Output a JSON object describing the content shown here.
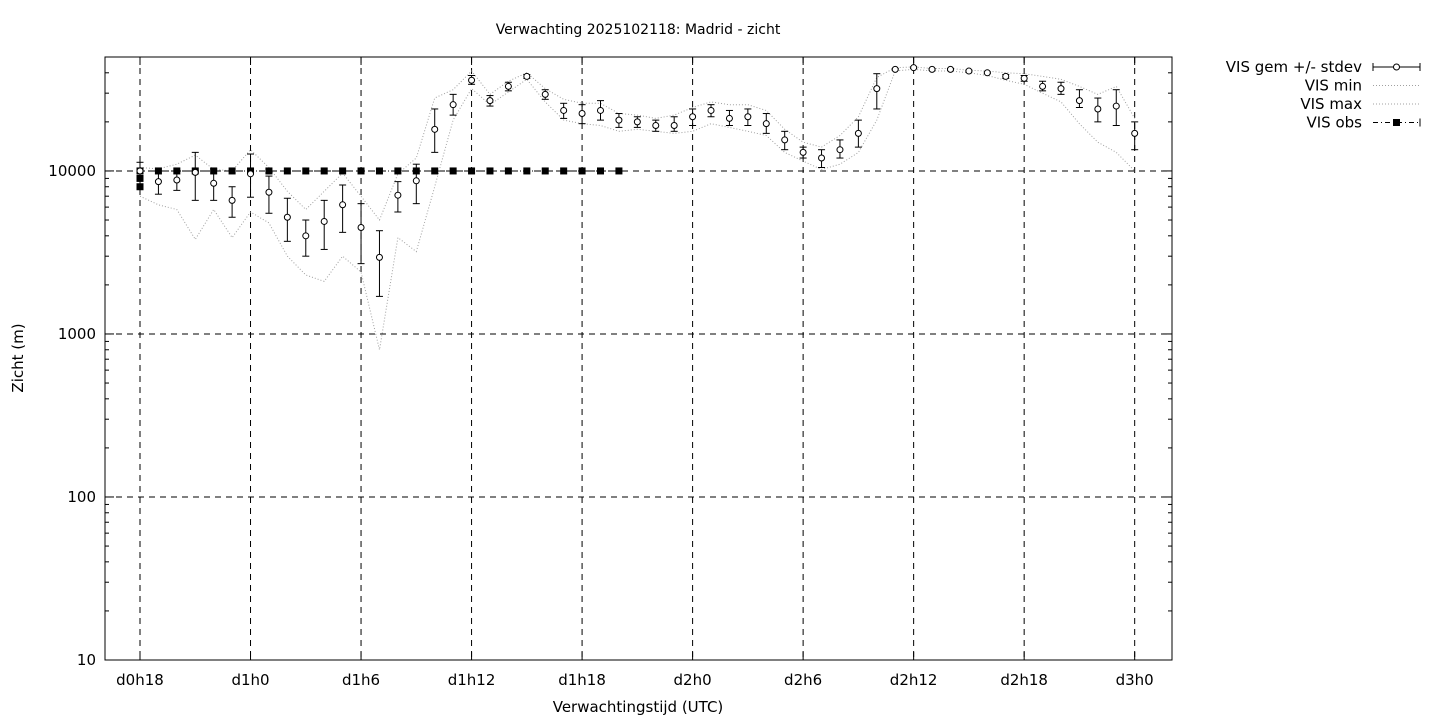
{
  "chart_data": {
    "type": "line",
    "title": "Verwachting 2025102118: Madrid - zicht",
    "xlabel": "Verwachtingstijd (UTC)",
    "ylabel": "Zicht (m)",
    "yscale": "log",
    "ylim": [
      10,
      50000
    ],
    "xlim": [
      -1,
      57
    ],
    "x_unit": "hours since d0h18",
    "x_ticks": [
      {
        "x": 0,
        "label": "d0h18"
      },
      {
        "x": 6,
        "label": "d1h0"
      },
      {
        "x": 12,
        "label": "d1h6"
      },
      {
        "x": 18,
        "label": "d1h12"
      },
      {
        "x": 24,
        "label": "d1h18"
      },
      {
        "x": 30,
        "label": "d2h0"
      },
      {
        "x": 36,
        "label": "d2h6"
      },
      {
        "x": 42,
        "label": "d2h12"
      },
      {
        "x": 48,
        "label": "d2h18"
      },
      {
        "x": 54,
        "label": "d3h0"
      }
    ],
    "y_ticks": [
      {
        "y": 10,
        "label": "10"
      },
      {
        "y": 100,
        "label": "100"
      },
      {
        "y": 1000,
        "label": "1000"
      },
      {
        "y": 10000,
        "label": "10000"
      }
    ],
    "grid": "dashed, at major ticks",
    "legend_position": "outside top-right",
    "series": [
      {
        "name": "VIS gem +/- stdev",
        "style": "open circles with error bars",
        "x": [
          0,
          1,
          2,
          3,
          4,
          5,
          6,
          7,
          8,
          9,
          10,
          11,
          12,
          13,
          14,
          15,
          16,
          17,
          18,
          19,
          20,
          21,
          22,
          23,
          24,
          25,
          26,
          27,
          28,
          29,
          30,
          31,
          32,
          33,
          34,
          35,
          36,
          37,
          38,
          39,
          40,
          41,
          42,
          43,
          44,
          45,
          46,
          47,
          48,
          49,
          50,
          51,
          52,
          53,
          54
        ],
        "mean": [
          10000,
          8600,
          8800,
          9800,
          8400,
          6600,
          9600,
          7400,
          5200,
          4000,
          4900,
          6200,
          4500,
          2950,
          7100,
          8700,
          18000,
          25500,
          36000,
          27000,
          33000,
          38000,
          29500,
          23500,
          22500,
          23500,
          20500,
          20000,
          19000,
          19000,
          21500,
          23500,
          21000,
          21500,
          19500,
          15500,
          13000,
          12000,
          13500,
          17000,
          32000,
          42000,
          43000,
          42000,
          42000,
          41000,
          40000,
          38000,
          37000,
          33000,
          32000,
          27000,
          24000,
          25000,
          17000
        ],
        "low": [
          8900,
          7200,
          7600,
          6600,
          6600,
          5200,
          6900,
          5500,
          3700,
          3000,
          3300,
          4200,
          2700,
          1700,
          5600,
          6300,
          13000,
          22000,
          34000,
          25000,
          31000,
          37000,
          27500,
          21000,
          19500,
          20500,
          18500,
          18500,
          17500,
          17500,
          19000,
          21500,
          19000,
          19000,
          17000,
          13500,
          12000,
          10500,
          12000,
          14000,
          24000,
          41500,
          42500,
          41500,
          41500,
          40500,
          39500,
          37000,
          35500,
          31000,
          29500,
          24500,
          20000,
          19000,
          13500
        ],
        "high": [
          11300,
          10000,
          10000,
          13000,
          10300,
          8000,
          12700,
          9300,
          6800,
          5000,
          6600,
          8200,
          6300,
          4300,
          8600,
          11000,
          24000,
          29500,
          38500,
          29000,
          35000,
          39000,
          31500,
          26000,
          25500,
          27000,
          22500,
          21500,
          20500,
          21500,
          24000,
          25500,
          23500,
          24000,
          22500,
          17500,
          14000,
          13500,
          15500,
          20500,
          39500,
          42500,
          43500,
          42500,
          42500,
          41500,
          40500,
          39000,
          38500,
          35500,
          35000,
          31500,
          28000,
          31500,
          20000
        ]
      },
      {
        "name": "VIS min",
        "style": "dotted grey line",
        "x": [
          0,
          1,
          2,
          3,
          4,
          5,
          6,
          7,
          8,
          9,
          10,
          11,
          12,
          13,
          14,
          15,
          16,
          17,
          18,
          19,
          20,
          21,
          22,
          23,
          24,
          25,
          26,
          27,
          28,
          29,
          30,
          31,
          32,
          33,
          34,
          35,
          36,
          37,
          38,
          39,
          40,
          41,
          42,
          43,
          44,
          45,
          46,
          47,
          48,
          49,
          50,
          51,
          52,
          53,
          54
        ],
        "values": [
          7000,
          6200,
          5800,
          3800,
          5800,
          3900,
          5600,
          4800,
          3000,
          2300,
          2100,
          3000,
          2400,
          800,
          3900,
          3200,
          8000,
          20500,
          32000,
          25500,
          30500,
          36500,
          26500,
          20500,
          19500,
          19000,
          17500,
          18000,
          17500,
          17000,
          17500,
          19500,
          18500,
          17500,
          16500,
          13000,
          11500,
          10200,
          11000,
          13000,
          20500,
          41000,
          42000,
          41000,
          41000,
          40000,
          38500,
          36000,
          34000,
          30000,
          26500,
          19500,
          15000,
          13000,
          10000
        ]
      },
      {
        "name": "VIS max",
        "style": "dotted grey line",
        "x": [
          0,
          1,
          2,
          3,
          4,
          5,
          6,
          7,
          8,
          9,
          10,
          11,
          12,
          13,
          14,
          15,
          16,
          17,
          18,
          19,
          20,
          21,
          22,
          23,
          24,
          25,
          26,
          27,
          28,
          29,
          30,
          31,
          32,
          33,
          34,
          35,
          36,
          37,
          38,
          39,
          40,
          41,
          42,
          43,
          44,
          45,
          46,
          47,
          48,
          49,
          50,
          51,
          52,
          53,
          54
        ],
        "values": [
          10500,
          10300,
          11000,
          12500,
          10200,
          10000,
          13500,
          10500,
          7500,
          5800,
          7500,
          9700,
          7000,
          5000,
          9600,
          12000,
          28000,
          31500,
          41000,
          29500,
          35500,
          40000,
          32000,
          27500,
          26000,
          26000,
          22500,
          22000,
          21000,
          22000,
          24500,
          26500,
          25500,
          25500,
          23500,
          18000,
          15000,
          14000,
          16500,
          21500,
          37500,
          43000,
          43500,
          42500,
          42500,
          41500,
          41000,
          40000,
          39500,
          38000,
          36500,
          33000,
          29500,
          33000,
          21000
        ]
      },
      {
        "name": "VIS obs",
        "style": "filled squares, dash-dot line",
        "x": [
          0,
          0,
          0,
          1,
          2,
          3,
          4,
          5,
          6,
          7,
          8,
          9,
          10,
          11,
          12,
          13,
          14,
          15,
          16,
          17,
          18,
          19,
          20,
          21,
          22,
          23,
          24,
          25,
          26
        ],
        "values": [
          8000,
          9000,
          10000,
          10000,
          10000,
          10000,
          10000,
          10000,
          10000,
          10000,
          10000,
          10000,
          10000,
          10000,
          10000,
          10000,
          10000,
          10000,
          10000,
          10000,
          10000,
          10000,
          10000,
          10000,
          10000,
          10000,
          10000,
          10000,
          10000
        ]
      }
    ]
  },
  "colors": {
    "background": "#ffffff",
    "axis": "#000000",
    "grid": "#000000",
    "minmax_line": "#a0a0a0",
    "series": "#000000"
  }
}
